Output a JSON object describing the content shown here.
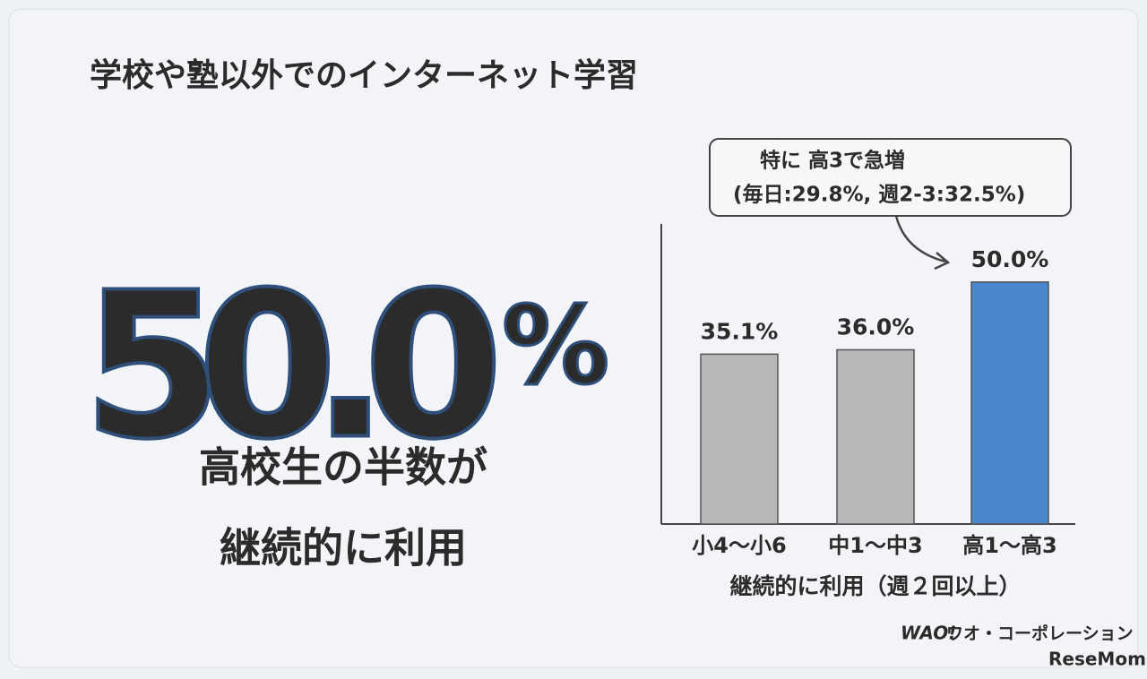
{
  "title": "学校や塾以外でのインターネット学習",
  "headline": {
    "number": "50.0",
    "unit": "%",
    "lines": [
      "高校生の半数が",
      "継続的に利用"
    ]
  },
  "brand": {
    "logo": "WAO!",
    "name": "ワオ・コーポレーション",
    "watermark": "ReseMom"
  },
  "chart_data": {
    "type": "bar",
    "categories": [
      "小4～小6",
      "中1～中3",
      "高1～高3"
    ],
    "values": [
      35.1,
      36.0,
      50.0
    ],
    "value_labels": [
      "35.1%",
      "36.0%",
      "50.0%"
    ],
    "colors": [
      "#b8b8b8",
      "#b8b8b8",
      "#4a86cc"
    ],
    "ylim": [
      0,
      62
    ],
    "xlabel": "継続的に利用（週２回以上）",
    "annotation": [
      "特に 高3で急増",
      "(毎日:29.8%, 週2-3:32.5%)"
    ]
  }
}
